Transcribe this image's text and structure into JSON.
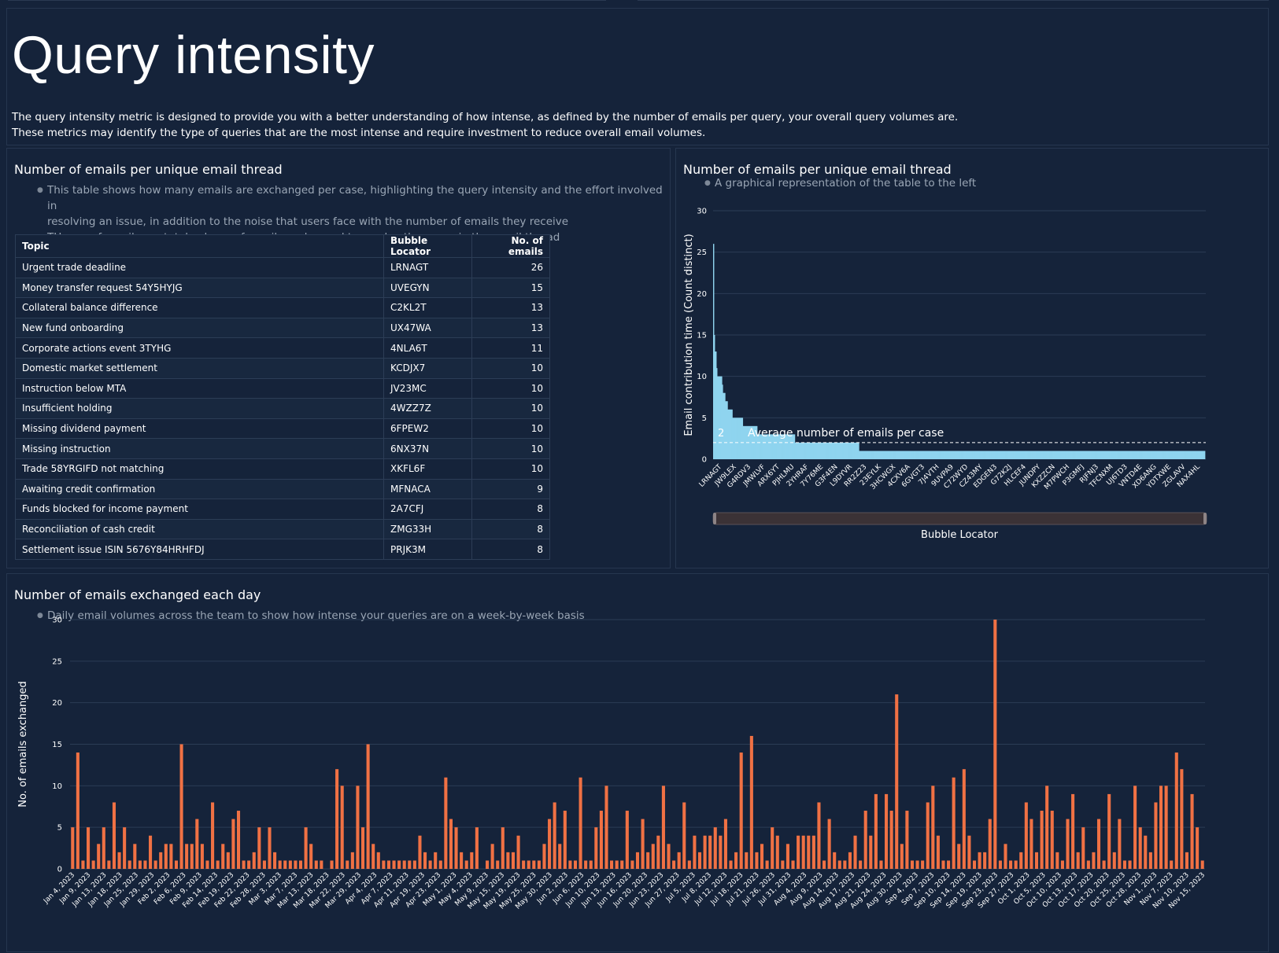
{
  "hero": {
    "title": "Query intensity",
    "line1": "The query intensity metric is designed to provide you with a better understanding of how intense, as defined by the number of emails per query, your overall query volumes are.",
    "line2": "These metrics may identify the type of queries that are the most intense and require investment to reduce overall email volumes."
  },
  "table_panel": {
    "title": "Number of emails per unique email thread",
    "bullet1": "This table shows how many emails are exchanged per case, highlighting the query intensity and the effort involved in",
    "bullet1b": "resolving an issue, in addition to the noise that users face with the number of emails they receive",
    "bullet2": "THe no. of emails are total volume of emails exchanged to resolve the query in the email thread",
    "headers": {
      "topic": "Topic",
      "locator": "Bubble Locator",
      "count": "No. of emails"
    },
    "rows": [
      {
        "topic": "Urgent trade deadline",
        "locator": "LRNAGT",
        "count": "26"
      },
      {
        "topic": "Money transfer request 54Y5HYJG",
        "locator": "UVEGYN",
        "count": "15"
      },
      {
        "topic": "Collateral balance difference",
        "locator": "C2KL2T",
        "count": "13"
      },
      {
        "topic": "New fund onboarding",
        "locator": "UX47WA",
        "count": "13"
      },
      {
        "topic": "Corporate actions event 3TYHG",
        "locator": "4NLA6T",
        "count": "11"
      },
      {
        "topic": "Domestic market settlement",
        "locator": "KCDJX7",
        "count": "10"
      },
      {
        "topic": "Instruction below MTA",
        "locator": "JV23MC",
        "count": "10"
      },
      {
        "topic": "Insufficient holding",
        "locator": "4WZZ7Z",
        "count": "10"
      },
      {
        "topic": "Missing dividend payment",
        "locator": "6FPEW2",
        "count": "10"
      },
      {
        "topic": "Missing instruction",
        "locator": "6NX37N",
        "count": "10"
      },
      {
        "topic": "Trade 58YRGIFD not matching",
        "locator": "XKFL6F",
        "count": "10"
      },
      {
        "topic": "Awaiting credit confirmation",
        "locator": "MFNACA",
        "count": "9"
      },
      {
        "topic": "Funds blocked for income payment",
        "locator": "2A7CFJ",
        "count": "8"
      },
      {
        "topic": "Reconciliation of cash credit",
        "locator": "ZMG33H",
        "count": "8"
      },
      {
        "topic": "Settlement issue ISIN 5676Y84HRHFDJ",
        "locator": "PRJK3M",
        "count": "8"
      }
    ]
  },
  "chart_panel": {
    "title": "Number of emails per unique email thread",
    "bullet1": "A graphical representation of the table to the left"
  },
  "daily_panel": {
    "title": "Number of emails exchanged each day",
    "bullet1": "Daily email volumes across the team to show how intense your queries are on a week-by-week basis"
  },
  "colors": {
    "background": "#15233a",
    "area": "#8fd4ef",
    "bars": "#f07144"
  },
  "chart_data": [
    {
      "type": "area",
      "title": "Number of emails per unique email thread",
      "xlabel": "Bubble Locator",
      "ylabel": "Email contribution time (Count distinct)",
      "ylim": [
        0,
        30
      ],
      "yticks": [
        0,
        5,
        10,
        15,
        20,
        25,
        30
      ],
      "x_tick_labels": [
        "LRNAGT",
        "JW9LEX",
        "G4RDV3",
        "JMWLVF",
        "ARX6YT",
        "PJHLMU",
        "2YHRAF",
        "7Y76ME",
        "G3F4EN",
        "L9DYVR",
        "RR2Z23",
        "23EYLK",
        "3HCWGX",
        "4CXV6A",
        "6GVGT3",
        "7J4VTH",
        "9UVPA9",
        "C72WYD",
        "CZ43MY",
        "EDGEN3",
        "G72K2J",
        "HLCEF4",
        "JUNDPY",
        "KXZZCN",
        "M7PWCH",
        "P3GMFJ",
        "RJFNJ3",
        "TFCNXM",
        "UJ6TD3",
        "VNTD4E",
        "XD6ANG",
        "YDTXWE",
        "ZGLAVV",
        "NAX4HL"
      ],
      "values": [
        26,
        15,
        13,
        13,
        11,
        10,
        10,
        10,
        10,
        10,
        10,
        9,
        8,
        8,
        8,
        7,
        7,
        7,
        6,
        6,
        6,
        6,
        6,
        6,
        5,
        5,
        5,
        5,
        5,
        5,
        5,
        5,
        5,
        5,
        5,
        5,
        5,
        4,
        4,
        4,
        4,
        4,
        4,
        4,
        4,
        4,
        4,
        4,
        4,
        4,
        4,
        4,
        4,
        4,
        4,
        3,
        3,
        3,
        3,
        3,
        3,
        3,
        3,
        3,
        3,
        3,
        3,
        3,
        3,
        3,
        3,
        3,
        3,
        3,
        3,
        3,
        3,
        3,
        3,
        3,
        3,
        3,
        3,
        3,
        3,
        3,
        3,
        3,
        3,
        3,
        3,
        3,
        3,
        3,
        3,
        3,
        3,
        3,
        3,
        3,
        3,
        3,
        2,
        2,
        2,
        2,
        2,
        2,
        2,
        2,
        2,
        2,
        2,
        2,
        2,
        2,
        2,
        2,
        2,
        2,
        2,
        2,
        2,
        2,
        2,
        2,
        2,
        2,
        2,
        2,
        2,
        2,
        2,
        2,
        2,
        2,
        2,
        2,
        2,
        2,
        2,
        2,
        2,
        2,
        2,
        2,
        2,
        2,
        2,
        2,
        2,
        2,
        2,
        2,
        2,
        2,
        2,
        2,
        2,
        2,
        2,
        2,
        2,
        2,
        2,
        2,
        2,
        2,
        2,
        2,
        2,
        2,
        2,
        2,
        2,
        2,
        2,
        2,
        2,
        2,
        2,
        2,
        1,
        1,
        1,
        1,
        1,
        1,
        1,
        1,
        1,
        1,
        1,
        1,
        1,
        1,
        1,
        1,
        1,
        1,
        1,
        1,
        1,
        1,
        1,
        1,
        1,
        1,
        1,
        1,
        1,
        1,
        1,
        1,
        1,
        1,
        1,
        1,
        1,
        1,
        1,
        1,
        1,
        1,
        1,
        1,
        1,
        1,
        1,
        1,
        1,
        1,
        1,
        1,
        1,
        1,
        1,
        1,
        1,
        1,
        1,
        1,
        1,
        1,
        1,
        1,
        1,
        1,
        1,
        1,
        1,
        1,
        1,
        1,
        1,
        1,
        1,
        1,
        1,
        1,
        1,
        1,
        1,
        1,
        1,
        1,
        1,
        1,
        1,
        1,
        1,
        1,
        1,
        1,
        1,
        1,
        1,
        1,
        1,
        1,
        1,
        1,
        1,
        1,
        1,
        1,
        1,
        1,
        1,
        1,
        1,
        1,
        1,
        1,
        1,
        1,
        1,
        1,
        1,
        1,
        1,
        1,
        1,
        1,
        1,
        1,
        1,
        1,
        1,
        1,
        1,
        1,
        1,
        1,
        1,
        1,
        1,
        1,
        1,
        1,
        1,
        1,
        1,
        1,
        1,
        1,
        1,
        1,
        1,
        1,
        1,
        1,
        1,
        1,
        1,
        1,
        1,
        1,
        1,
        1,
        1,
        1,
        1,
        1,
        1,
        1,
        1,
        1,
        1,
        1,
        1,
        1,
        1,
        1,
        1,
        1,
        1,
        1,
        1,
        1,
        1,
        1,
        1,
        1,
        1,
        1,
        1,
        1,
        1,
        1,
        1,
        1,
        1,
        1,
        1,
        1,
        1,
        1,
        1,
        1,
        1,
        1,
        1,
        1,
        1,
        1,
        1,
        1,
        1,
        1,
        1,
        1,
        1,
        1,
        1,
        1,
        1,
        1,
        1,
        1,
        1,
        1,
        1,
        1,
        1,
        1,
        1,
        1,
        1,
        1,
        1,
        1,
        1,
        1,
        1,
        1,
        1,
        1,
        1,
        1,
        1,
        1,
        1,
        1,
        1,
        1,
        1,
        1,
        1,
        1,
        1,
        1,
        1,
        1,
        1,
        1,
        1,
        1,
        1,
        1,
        1,
        1,
        1,
        1,
        1,
        1,
        1,
        1,
        1,
        1,
        1,
        1,
        1,
        1,
        1,
        1,
        1,
        1,
        1,
        1,
        1,
        1,
        1,
        1,
        1,
        1,
        1,
        1,
        1,
        1,
        1,
        1,
        1,
        1,
        1,
        1,
        1,
        1,
        1,
        1,
        1,
        1,
        1,
        1,
        1,
        1,
        1,
        1,
        1,
        1,
        1,
        1,
        1,
        1,
        1,
        1,
        1,
        1,
        1,
        1,
        1,
        1,
        1,
        1,
        1,
        1,
        1,
        1,
        1,
        1,
        1,
        1,
        1,
        1,
        1,
        1,
        1,
        1,
        1,
        1,
        1,
        1,
        1,
        1,
        1,
        1,
        1,
        1,
        1,
        1,
        1,
        1,
        1,
        1,
        1,
        1,
        1,
        1,
        1,
        1,
        1,
        1,
        1,
        1,
        1,
        1,
        1,
        1,
        1,
        1,
        1,
        1,
        1,
        1,
        1,
        1,
        1,
        1,
        1,
        1,
        1,
        1,
        1,
        1,
        1,
        1,
        1,
        1,
        1,
        1,
        1,
        1,
        1,
        1,
        1,
        1,
        1,
        1,
        1,
        1,
        1,
        1,
        1,
        1,
        1,
        1,
        1,
        1,
        1,
        1,
        1,
        1,
        1,
        1,
        1,
        1,
        1,
        1,
        1,
        1,
        1,
        1,
        1,
        1,
        1,
        1,
        1,
        1,
        1,
        1,
        1,
        1,
        1,
        1,
        0
      ],
      "reference_line": {
        "value": 2,
        "label": "Average number of emails per case",
        "value_label": "2"
      }
    },
    {
      "type": "bar",
      "title": "Number of emails exchanged each day",
      "xlabel": "",
      "ylabel": "No. of emails exchanged",
      "ylim": [
        0,
        30
      ],
      "yticks": [
        0,
        5,
        10,
        15,
        20,
        25,
        30
      ],
      "values": [
        5,
        14,
        1,
        5,
        1,
        3,
        5,
        1,
        8,
        2,
        5,
        1,
        3,
        1,
        1,
        4,
        1,
        2,
        3,
        3,
        1,
        15,
        3,
        3,
        6,
        3,
        1,
        8,
        1,
        3,
        2,
        6,
        7,
        1,
        1,
        2,
        5,
        1,
        5,
        2,
        1,
        1,
        1,
        1,
        1,
        5,
        3,
        1,
        1,
        0,
        1,
        12,
        10,
        1,
        2,
        10,
        5,
        15,
        3,
        2,
        1,
        1,
        1,
        1,
        1,
        1,
        1,
        4,
        2,
        1,
        2,
        1,
        11,
        6,
        5,
        2,
        1,
        2,
        5,
        0,
        1,
        3,
        1,
        5,
        2,
        2,
        4,
        1,
        1,
        1,
        1,
        3,
        6,
        8,
        3,
        7,
        1,
        1,
        11,
        1,
        1,
        5,
        7,
        10,
        1,
        1,
        1,
        7,
        1,
        2,
        6,
        2,
        3,
        4,
        10,
        3,
        1,
        2,
        8,
        1,
        4,
        2,
        4,
        4,
        5,
        4,
        6,
        1,
        2,
        14,
        2,
        16,
        2,
        3,
        1,
        5,
        4,
        1,
        3,
        1,
        4,
        4,
        4,
        4,
        8,
        1,
        6,
        2,
        1,
        1,
        2,
        4,
        1,
        7,
        4,
        9,
        1,
        9,
        7,
        21,
        3,
        7,
        1,
        1,
        1,
        8,
        10,
        4,
        1,
        1,
        11,
        3,
        12,
        4,
        1,
        2,
        2,
        6,
        30,
        1,
        3,
        1,
        1,
        2,
        8,
        6,
        2,
        7,
        10,
        7,
        2,
        1,
        6,
        9,
        2,
        5,
        1,
        2,
        6,
        1,
        9,
        2,
        6,
        1,
        1,
        10,
        5,
        4,
        2,
        8,
        10,
        10,
        1,
        14,
        12,
        2,
        9,
        5,
        1
      ],
      "x_tick_labels": [
        "Jan 4, 2023",
        "Jan 9, 2023",
        "Jan 13, 2023",
        "Jan 18, 2023",
        "Jan 25, 2023",
        "Jan 29, 2023",
        "Feb 2, 2023",
        "Feb 6, 2023",
        "Feb 9, 2023",
        "Feb 14, 2023",
        "Feb 19, 2023",
        "Feb 22, 2023",
        "Feb 28, 2023",
        "Mar 3, 2023",
        "Mar 7, 2023",
        "Mar 13, 2023",
        "Mar 18, 2023",
        "Mar 22, 2023",
        "Mar 29, 2023",
        "Apr 4, 2023",
        "Apr 7, 2023",
        "Apr 11, 2023",
        "Apr 19, 2023",
        "Apr 23, 2023",
        "May 1, 2023",
        "May 4, 2023",
        "May 9, 2023",
        "May 15, 2023",
        "May 19, 2023",
        "May 25, 2023",
        "May 30, 2023",
        "Jun 2, 2023",
        "Jun 6, 2023",
        "Jun 10, 2023",
        "Jun 13, 2023",
        "Jun 16, 2023",
        "Jun 20, 2023",
        "Jun 23, 2023",
        "Jun 27, 2023",
        "Jul 5, 2023",
        "Jul 8, 2023",
        "Jul 12, 2023",
        "Jul 18, 2023",
        "Jul 21, 2023",
        "Jul 26, 2023",
        "Jul 31, 2023",
        "Aug 4, 2023",
        "Aug 9, 2023",
        "Aug 14, 2023",
        "Aug 17, 2023",
        "Aug 21, 2023",
        "Aug 24, 2023",
        "Aug 30, 2023",
        "Sep 4, 2023",
        "Sep 7, 2023",
        "Sep 10, 2023",
        "Sep 14, 2023",
        "Sep 19, 2023",
        "Sep 23, 2023",
        "Sep 27, 2023",
        "Oct 1, 2023",
        "Oct 5, 2023",
        "Oct 10, 2023",
        "Oct 13, 2023",
        "Oct 17, 2023",
        "Oct 20, 2023",
        "Oct 25, 2023",
        "Oct 28, 2023",
        "Nov 1, 2023",
        "Nov 7, 2023",
        "Nov 10, 2023",
        "Nov 15, 2023"
      ]
    }
  ]
}
